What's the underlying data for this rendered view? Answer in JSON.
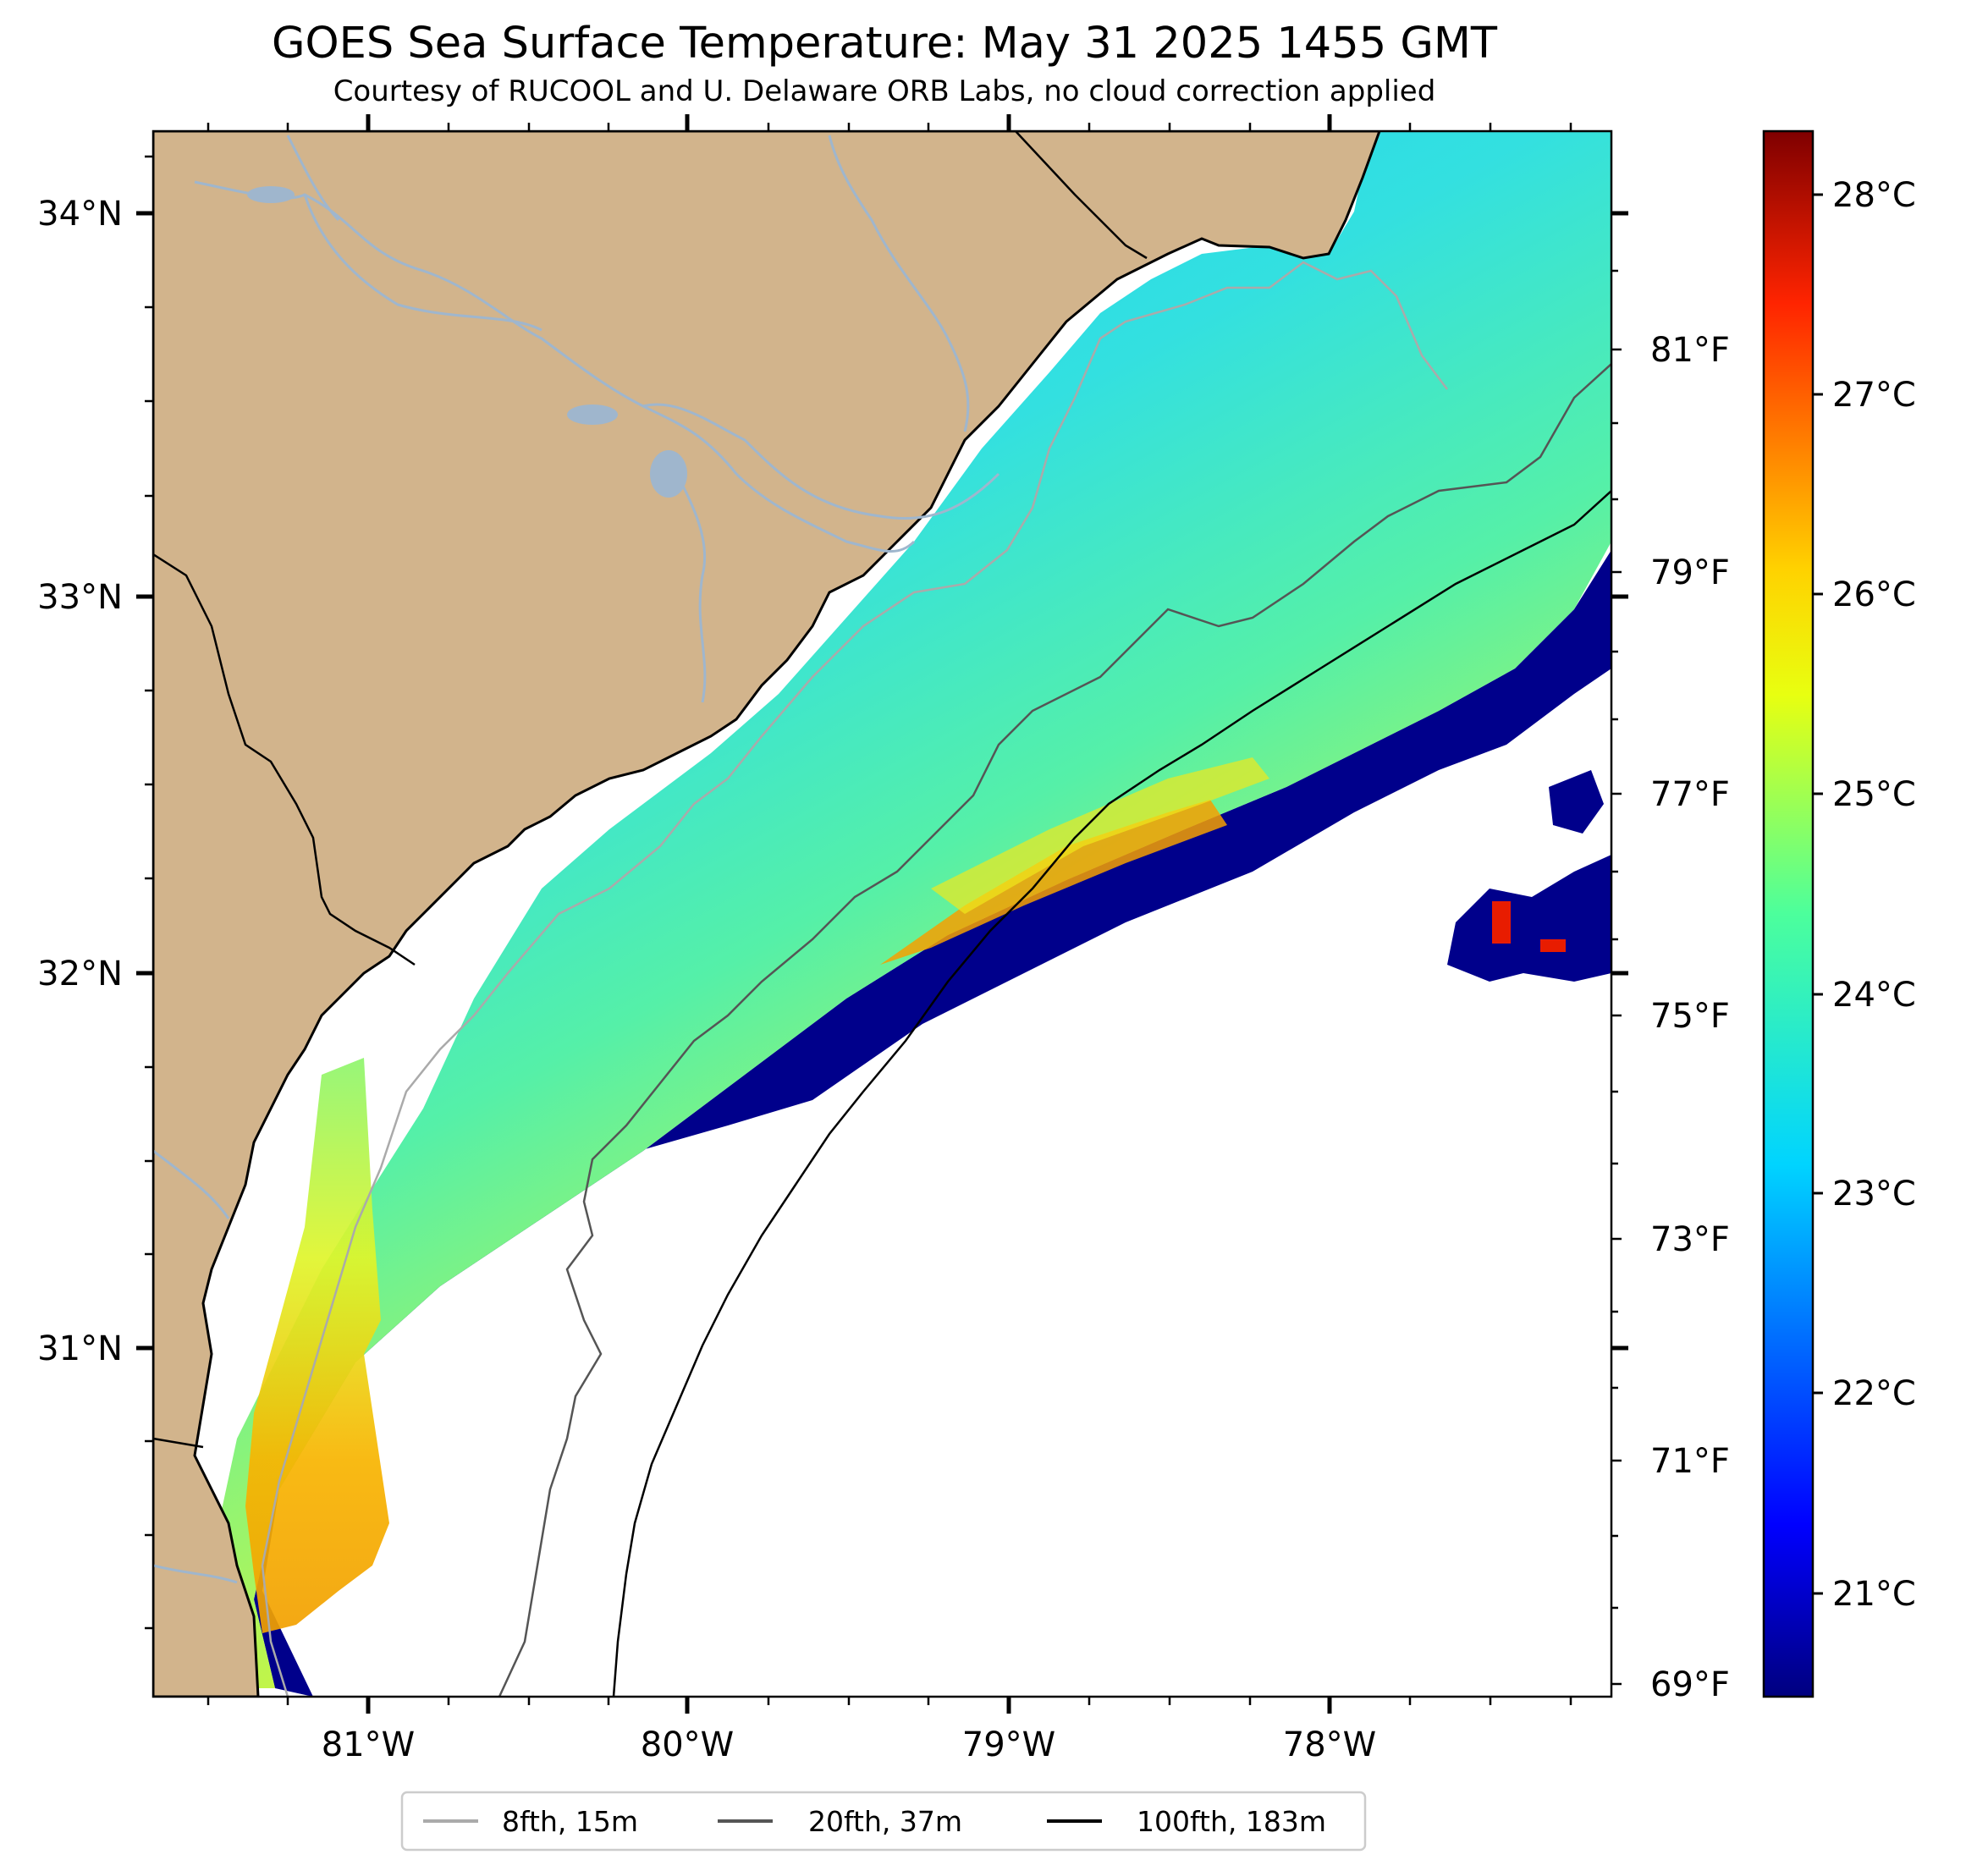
{
  "title": "GOES Sea Surface Temperature: May 31 2025 1455 GMT",
  "subtitle": "Courtesy of RUCOOL and U. Delaware ORB Labs, no cloud correction applied",
  "map": {
    "lon_range": [
      -81.67,
      -77.12
    ],
    "lat_range": [
      30.09,
      34.22
    ],
    "lon_ticks": [
      "81°W",
      "80°W",
      "79°W",
      "78°W"
    ],
    "lat_ticks": [
      "34°N",
      "33°N",
      "32°N",
      "31°N"
    ],
    "fahrenheit_ticks": [
      "81°F",
      "79°F",
      "77°F",
      "75°F",
      "73°F",
      "71°F",
      "69°F"
    ],
    "land_color": "#d2b48c",
    "river_color": "#9fb6cd"
  },
  "colorbar": {
    "colormap": "jet",
    "range_c": [
      20.5,
      28.3
    ],
    "ticks": [
      "28°C",
      "27°C",
      "26°C",
      "25°C",
      "24°C",
      "23°C",
      "22°C",
      "21°C"
    ]
  },
  "legend": {
    "items": [
      {
        "label": "8fth, 15m",
        "color": "#aaaaaa"
      },
      {
        "label": "20fth, 37m",
        "color": "#555555"
      },
      {
        "label": "100fth, 183m",
        "color": "#000000"
      }
    ]
  }
}
